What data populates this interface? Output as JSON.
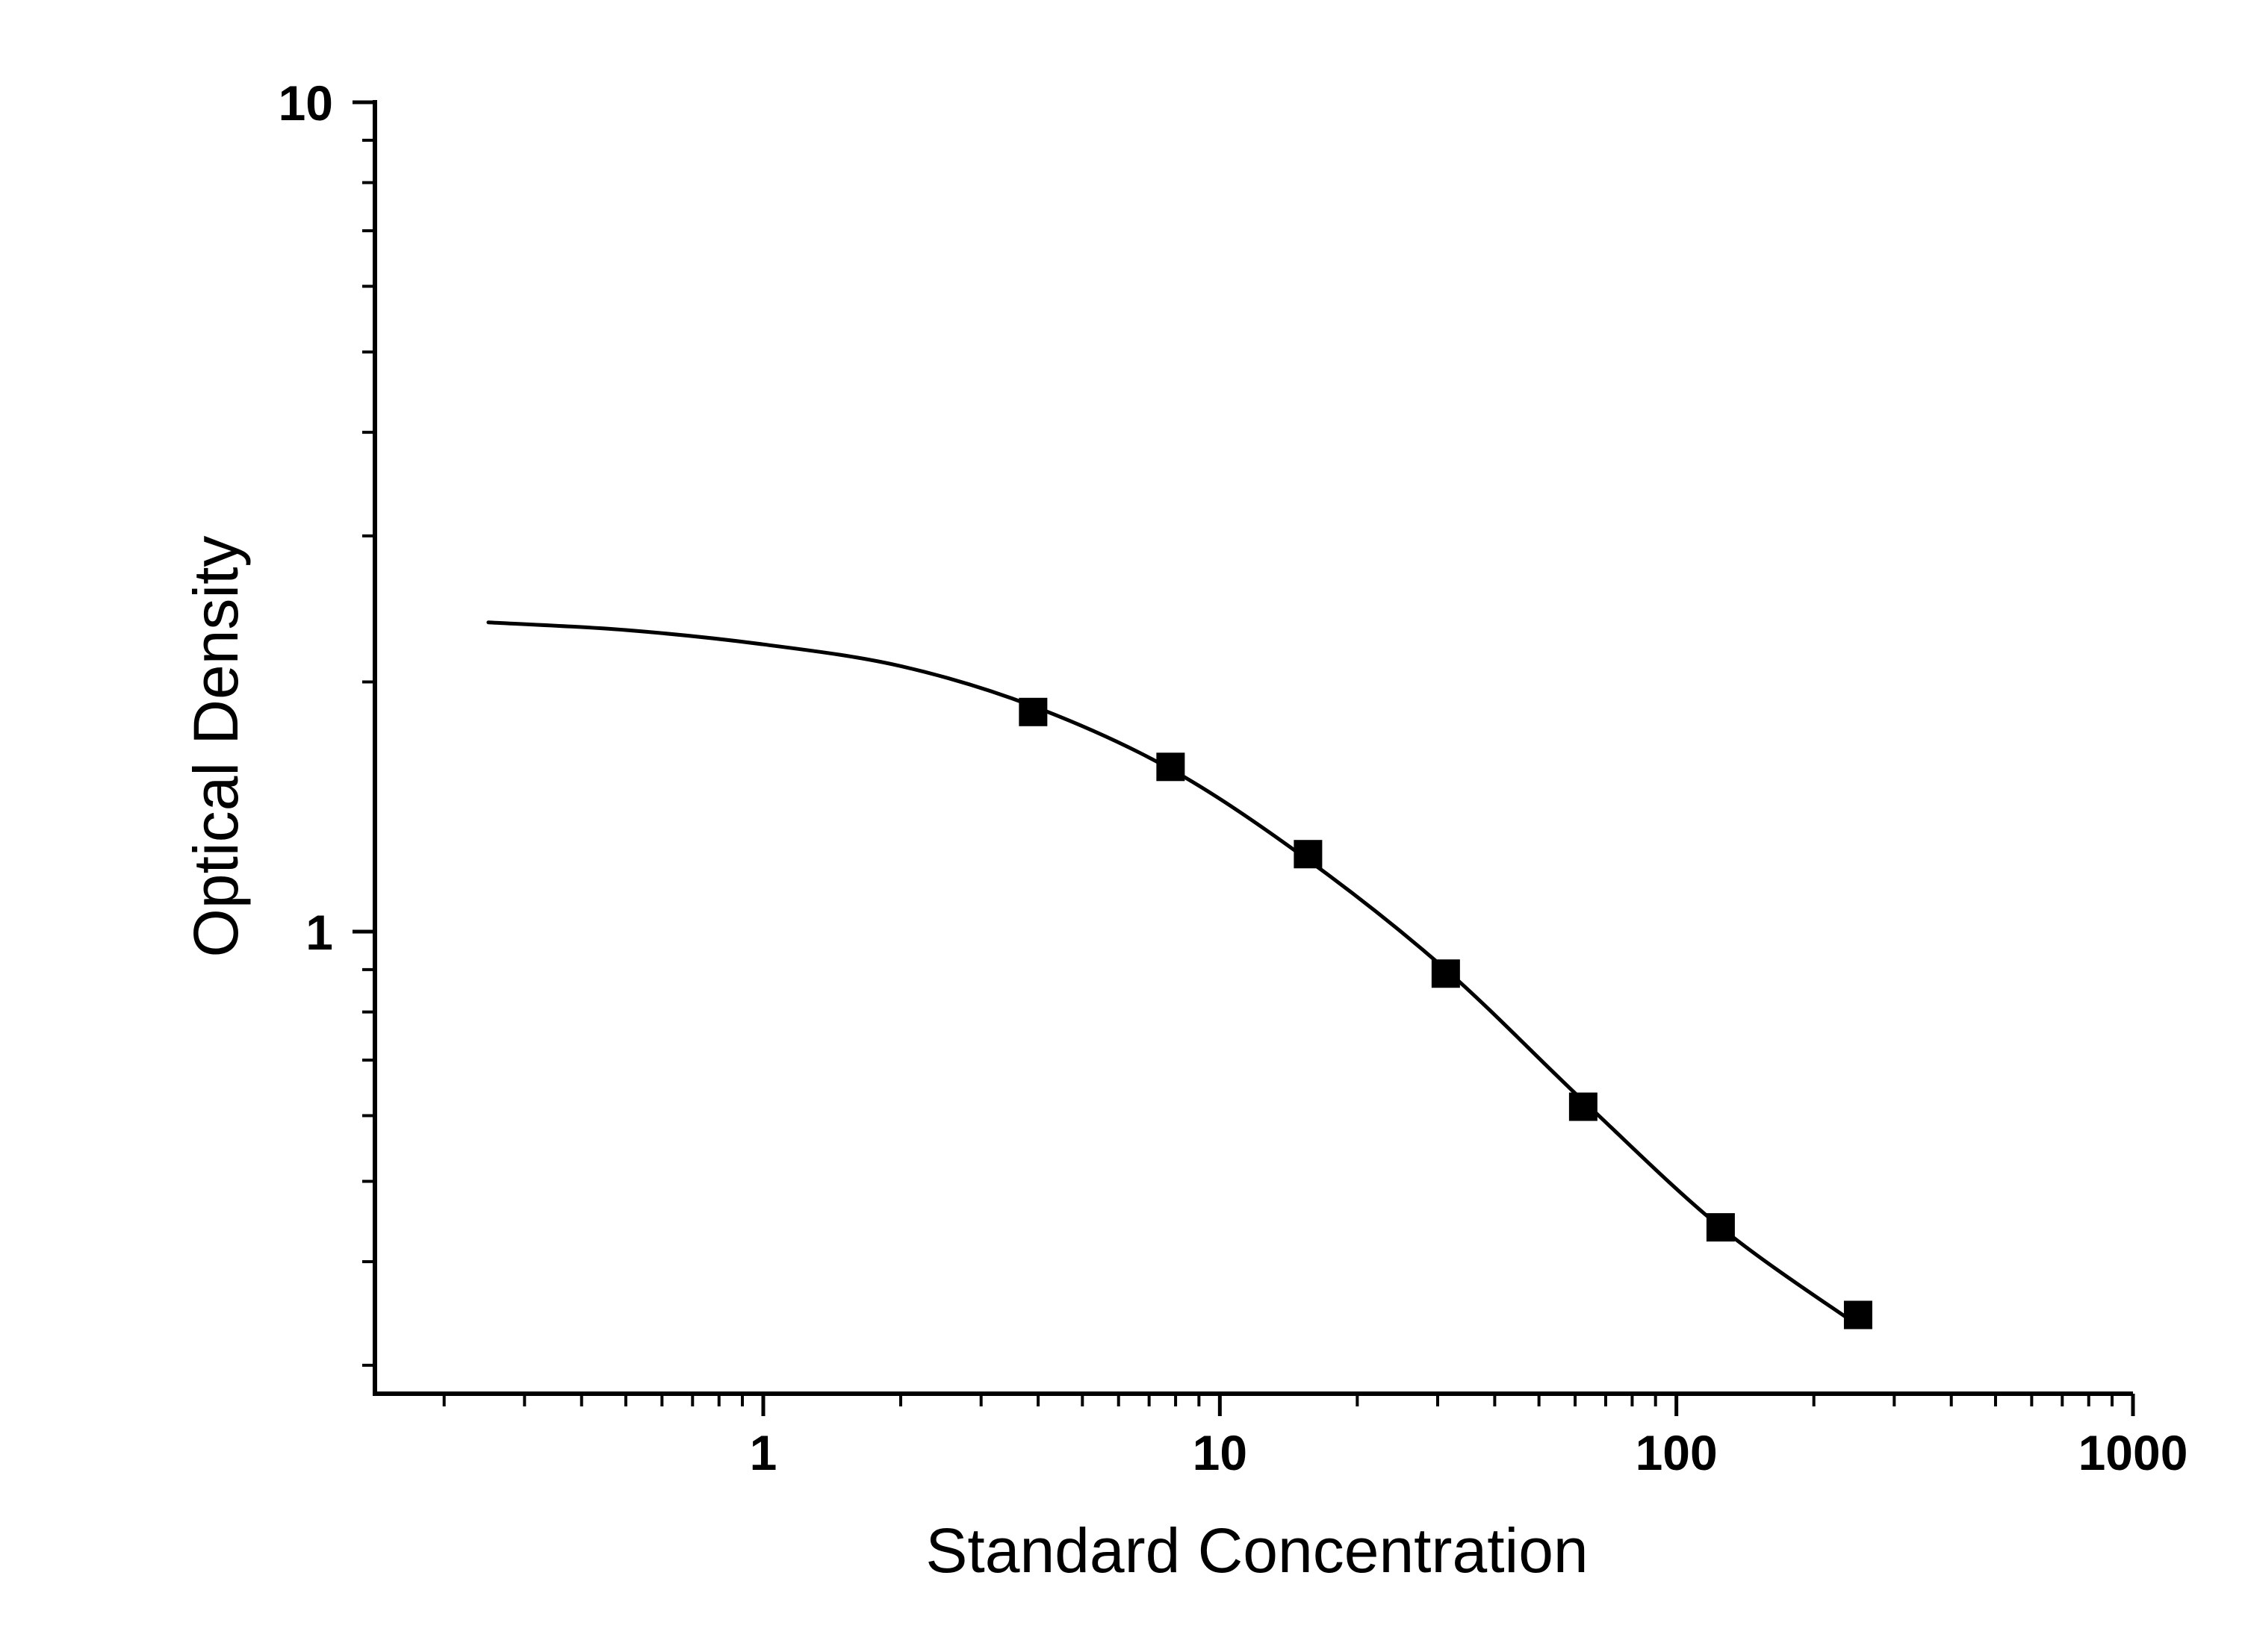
{
  "chart_data": {
    "type": "scatter",
    "title": "",
    "xlabel": "Standard Concentration",
    "ylabel": "Optical Density",
    "x_scale": "log",
    "y_scale": "log",
    "xlim": [
      0.15,
      1000
    ],
    "ylim": [
      0.28,
      10
    ],
    "x_ticks": [
      {
        "value": 1,
        "label": "1"
      },
      {
        "value": 10,
        "label": "10"
      },
      {
        "value": 100,
        "label": "100"
      },
      {
        "value": 1000,
        "label": "1000"
      }
    ],
    "y_ticks": [
      {
        "value": 1,
        "label": "1"
      },
      {
        "value": 10,
        "label": "10"
      }
    ],
    "grid": false,
    "legend": "none",
    "marker": "square",
    "color": "#000000",
    "series": [
      {
        "points": [
          {
            "x": 3.9,
            "y": 1.84
          },
          {
            "x": 7.8,
            "y": 1.58
          },
          {
            "x": 15.6,
            "y": 1.24
          },
          {
            "x": 31.25,
            "y": 0.89
          },
          {
            "x": 62.5,
            "y": 0.615
          },
          {
            "x": 125,
            "y": 0.44
          },
          {
            "x": 250,
            "y": 0.345
          }
        ],
        "fit_curve": [
          {
            "x": 0.25,
            "y": 2.36
          },
          {
            "x": 0.5,
            "y": 2.31
          },
          {
            "x": 1,
            "y": 2.22
          },
          {
            "x": 2,
            "y": 2.09
          },
          {
            "x": 3.9,
            "y": 1.87
          },
          {
            "x": 7.8,
            "y": 1.57
          },
          {
            "x": 15.6,
            "y": 1.22
          },
          {
            "x": 31.25,
            "y": 0.9
          },
          {
            "x": 62.5,
            "y": 0.625
          },
          {
            "x": 125,
            "y": 0.44
          },
          {
            "x": 250,
            "y": 0.335
          }
        ]
      }
    ]
  }
}
